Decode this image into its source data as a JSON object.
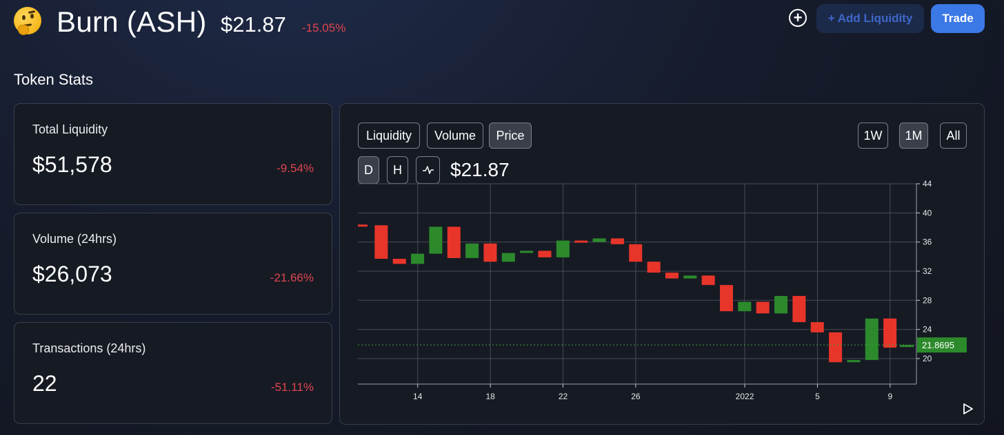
{
  "header": {
    "title": "Burn (ASH)",
    "price": "$21.87",
    "change": "-15.05%",
    "add_liquidity_label": "+ Add Liquidity",
    "trade_label": "Trade",
    "emoji_icon": "thinking-face-icon"
  },
  "token_stats": {
    "title": "Token Stats",
    "cards": [
      {
        "label": "Total Liquidity",
        "value": "$51,578",
        "change": "-9.54%"
      },
      {
        "label": "Volume (24hrs)",
        "value": "$26,073",
        "change": "-21.66%"
      },
      {
        "label": "Transactions (24hrs)",
        "value": "22",
        "change": "-51.11%"
      }
    ]
  },
  "chart_panel": {
    "tabs": [
      "Liquidity",
      "Volume",
      "Price"
    ],
    "active_tab": "Price",
    "ranges": [
      "1W",
      "1M",
      "All"
    ],
    "active_range": "1M",
    "intervals": [
      "D",
      "H"
    ],
    "active_interval": "D",
    "current_price": "$21.87",
    "price_tag": "21.8695"
  },
  "colors": {
    "up": "#2c8a2c",
    "down": "#e8352a",
    "negative_text": "#e0454f",
    "accent": "#3b79e6"
  },
  "chart_data": {
    "type": "candlestick",
    "x_ticks": [
      "14",
      "18",
      "22",
      "26",
      "2022",
      "5",
      "9"
    ],
    "y_ticks": [
      20,
      24,
      28,
      32,
      36,
      40,
      44
    ],
    "ylim": [
      16.5,
      44
    ],
    "current_value": 21.8695,
    "candles": [
      {
        "o": 38.4,
        "c": 38.2
      },
      {
        "o": 38.3,
        "c": 33.7
      },
      {
        "o": 33.7,
        "c": 33.0
      },
      {
        "o": 33.0,
        "c": 34.4
      },
      {
        "o": 34.4,
        "c": 38.1
      },
      {
        "o": 38.1,
        "c": 33.8
      },
      {
        "o": 33.8,
        "c": 35.8
      },
      {
        "o": 35.8,
        "c": 33.3
      },
      {
        "o": 33.3,
        "c": 34.5
      },
      {
        "o": 34.5,
        "c": 34.8
      },
      {
        "o": 34.8,
        "c": 33.9
      },
      {
        "o": 33.9,
        "c": 36.2
      },
      {
        "o": 36.2,
        "c": 36.0
      },
      {
        "o": 36.0,
        "c": 36.5
      },
      {
        "o": 36.5,
        "c": 35.7
      },
      {
        "o": 35.7,
        "c": 33.3
      },
      {
        "o": 33.3,
        "c": 31.8
      },
      {
        "o": 31.8,
        "c": 31.0
      },
      {
        "o": 31.0,
        "c": 31.4
      },
      {
        "o": 31.4,
        "c": 30.1
      },
      {
        "o": 30.1,
        "c": 26.5
      },
      {
        "o": 26.5,
        "c": 27.8
      },
      {
        "o": 27.8,
        "c": 26.2
      },
      {
        "o": 26.2,
        "c": 28.6
      },
      {
        "o": 28.6,
        "c": 25.0
      },
      {
        "o": 25.0,
        "c": 23.6
      },
      {
        "o": 23.6,
        "c": 19.5
      },
      {
        "o": 19.5,
        "c": 19.8
      },
      {
        "o": 19.8,
        "c": 25.5
      },
      {
        "o": 25.5,
        "c": 21.5
      },
      {
        "o": 21.5,
        "c": 21.87
      }
    ]
  }
}
